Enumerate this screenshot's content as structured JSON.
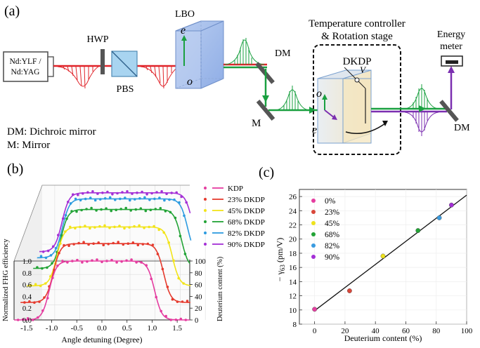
{
  "panel_a": {
    "label": "(a)",
    "laser_line1": "Nd:YLF /",
    "laser_line2": "Nd:YAG",
    "hwp": "HWP",
    "pbs": "PBS",
    "lbo": "LBO",
    "lbo_e": "e",
    "lbo_o": "o",
    "dm_top": "DM",
    "mirror": "M",
    "controller_line1": "Temperature controller",
    "controller_line2": "& Rotation stage",
    "dkdp": "DKDP",
    "voltage": "V",
    "dkdp_o": "o",
    "dkdp_e": "e",
    "energy_line1": "Energy",
    "energy_line2": "meter",
    "dm_right": "DM",
    "legend_dm": "DM: Dichroic mirror",
    "legend_m": "M: Mirror",
    "colors": {
      "fundamental": "#e0242a",
      "second": "#1aa040",
      "fourth": "#7b2fb0"
    }
  },
  "panel_b": {
    "label": "(b)",
    "ylabel": "Normalized FHG efficiency",
    "xlabel": "Angle detuning (Degree)",
    "zlabel": "Deuterium content (%)",
    "x_ticks": [
      "-1.5",
      "-1.0",
      "-0.5",
      "0.0",
      "0.5",
      "1.0",
      "1.5"
    ],
    "y_ticks": [
      "0.0",
      "0.2",
      "0.4",
      "0.6",
      "0.8",
      "1.0"
    ],
    "z_ticks": [
      "0",
      "20",
      "40",
      "60",
      "80",
      "100"
    ],
    "legend": [
      {
        "label": "KDP",
        "color": "#e53da0"
      },
      {
        "label": "23% DKDP",
        "color": "#e53b2e"
      },
      {
        "label": "45% DKDP",
        "color": "#f2e41a"
      },
      {
        "label": "68% DKDP",
        "color": "#22a336"
      },
      {
        "label": "82% DKDP",
        "color": "#2c9be0"
      },
      {
        "label": "90% DKDP",
        "color": "#a42fd6"
      }
    ]
  },
  "chart_data": [
    {
      "type": "line",
      "title": "",
      "xlabel": "Angle detuning (Degree)",
      "ylabel": "Normalized FHG efficiency",
      "zlabel": "Deuterium content (%)",
      "xlim": [
        -1.75,
        1.75
      ],
      "ylim": [
        0,
        1.0
      ],
      "zlim": [
        0,
        100
      ],
      "series": [
        {
          "name": "KDP",
          "deuterium": 0,
          "plateau": 1.0,
          "baseline": 0.0,
          "half_width": 1.05
        },
        {
          "name": "23% DKDP",
          "deuterium": 23,
          "plateau": 1.0,
          "baseline": 0.2,
          "half_width": 1.1
        },
        {
          "name": "45% DKDP",
          "deuterium": 45,
          "plateau": 1.0,
          "baseline": 0.4,
          "half_width": 1.15
        },
        {
          "name": "68% DKDP",
          "deuterium": 68,
          "plateau": 1.0,
          "baseline": 0.6,
          "half_width": 1.2
        },
        {
          "name": "82% DKDP",
          "deuterium": 82,
          "plateau": 1.0,
          "baseline": 0.7,
          "half_width": 1.25
        },
        {
          "name": "90% DKDP",
          "deuterium": 90,
          "plateau": 1.0,
          "baseline": 0.8,
          "half_width": 1.3
        }
      ],
      "legend_position": "right"
    },
    {
      "type": "scatter",
      "title": "",
      "xlabel": "Deuterium content (%)",
      "ylabel": "− γ63 (pm/V)",
      "xlim": [
        -10,
        100
      ],
      "ylim": [
        8,
        27
      ],
      "x_ticks": [
        0,
        20,
        40,
        60,
        80,
        100
      ],
      "y_ticks": [
        8,
        10,
        12,
        14,
        16,
        18,
        20,
        22,
        24,
        26
      ],
      "series": [
        {
          "name": "0%",
          "color": "#e53da0",
          "x": 0,
          "y": 10.1
        },
        {
          "name": "23%",
          "color": "#d9473a",
          "x": 23,
          "y": 12.7
        },
        {
          "name": "45%",
          "color": "#eee21c",
          "x": 45,
          "y": 17.6
        },
        {
          "name": "68%",
          "color": "#22a336",
          "x": 68,
          "y": 21.2
        },
        {
          "name": "82%",
          "color": "#3a9be0",
          "x": 82,
          "y": 23.0
        },
        {
          "name": "90%",
          "color": "#a42fd6",
          "x": 90,
          "y": 24.8
        }
      ],
      "fit_line": {
        "x": [
          0,
          100
        ],
        "y": [
          9.9,
          26.2
        ]
      },
      "legend_position": "top-left"
    }
  ],
  "panel_c": {
    "label": "(c)",
    "ylabel_prefix": "− γ",
    "ylabel_sub": "63",
    "ylabel_suffix": " (pm/V)"
  }
}
